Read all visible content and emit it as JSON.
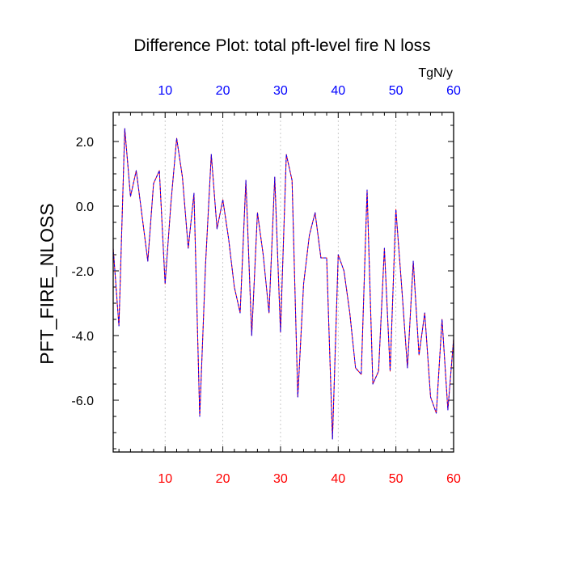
{
  "chart_data": {
    "type": "line",
    "title": "Difference Plot: total pft-level fire N loss",
    "units_label": "TgN/y",
    "ylabel": "PFT_FIRE_NLOSS",
    "xlim": [
      1,
      60
    ],
    "ylim": [
      -7.6,
      2.9
    ],
    "x_ticks_top": [
      "10",
      "20",
      "30",
      "40",
      "50",
      "60"
    ],
    "x_ticks_bottom": [
      "10",
      "20",
      "30",
      "40",
      "50",
      "60"
    ],
    "y_ticks": [
      "2.0",
      "0.0",
      "-2.0",
      "-4.0",
      "-6.0"
    ],
    "grid": "vertical dashed at x ticks",
    "colors": {
      "top_ticks": "#0000ff",
      "bottom_ticks": "#ff0000",
      "series_a": "#ff0000",
      "series_b": "#0000ff",
      "grid": "#bbbbbb",
      "axes": "#000000"
    },
    "series": [
      {
        "x": [
          1,
          2,
          3,
          4,
          5,
          6,
          7,
          8,
          9,
          10,
          11,
          12,
          13,
          14,
          15,
          16,
          17,
          18,
          19,
          20,
          21,
          22,
          23,
          24,
          25,
          26,
          27,
          28,
          29,
          30,
          31,
          32,
          33,
          34,
          35,
          36,
          37,
          38,
          39,
          40,
          41,
          42,
          43,
          44,
          45,
          46,
          47,
          48,
          49,
          50,
          51,
          52,
          53,
          54,
          55,
          56,
          57,
          58,
          59,
          60
        ],
        "values": [
          -1.3,
          -3.7,
          2.4,
          0.3,
          1.1,
          -0.3,
          -1.7,
          0.7,
          1.1,
          -2.4,
          0.1,
          2.1,
          0.9,
          -1.3,
          0.4,
          -6.5,
          -1.8,
          1.6,
          -0.7,
          0.2,
          -1.0,
          -2.5,
          -3.3,
          0.8,
          -4.0,
          -0.2,
          -1.5,
          -3.3,
          0.9,
          -3.9,
          1.6,
          0.8,
          -5.9,
          -2.4,
          -0.9,
          -0.2,
          -1.6,
          -1.6,
          -7.2,
          -1.5,
          -2.0,
          -3.3,
          -5.0,
          -5.2,
          0.5,
          -5.5,
          -5.1,
          -1.3,
          -5.1,
          -0.1,
          -2.5,
          -5.0,
          -1.7,
          -4.6,
          -3.3,
          -5.9,
          -6.4,
          -3.5,
          -6.3,
          -4.1
        ]
      }
    ]
  }
}
